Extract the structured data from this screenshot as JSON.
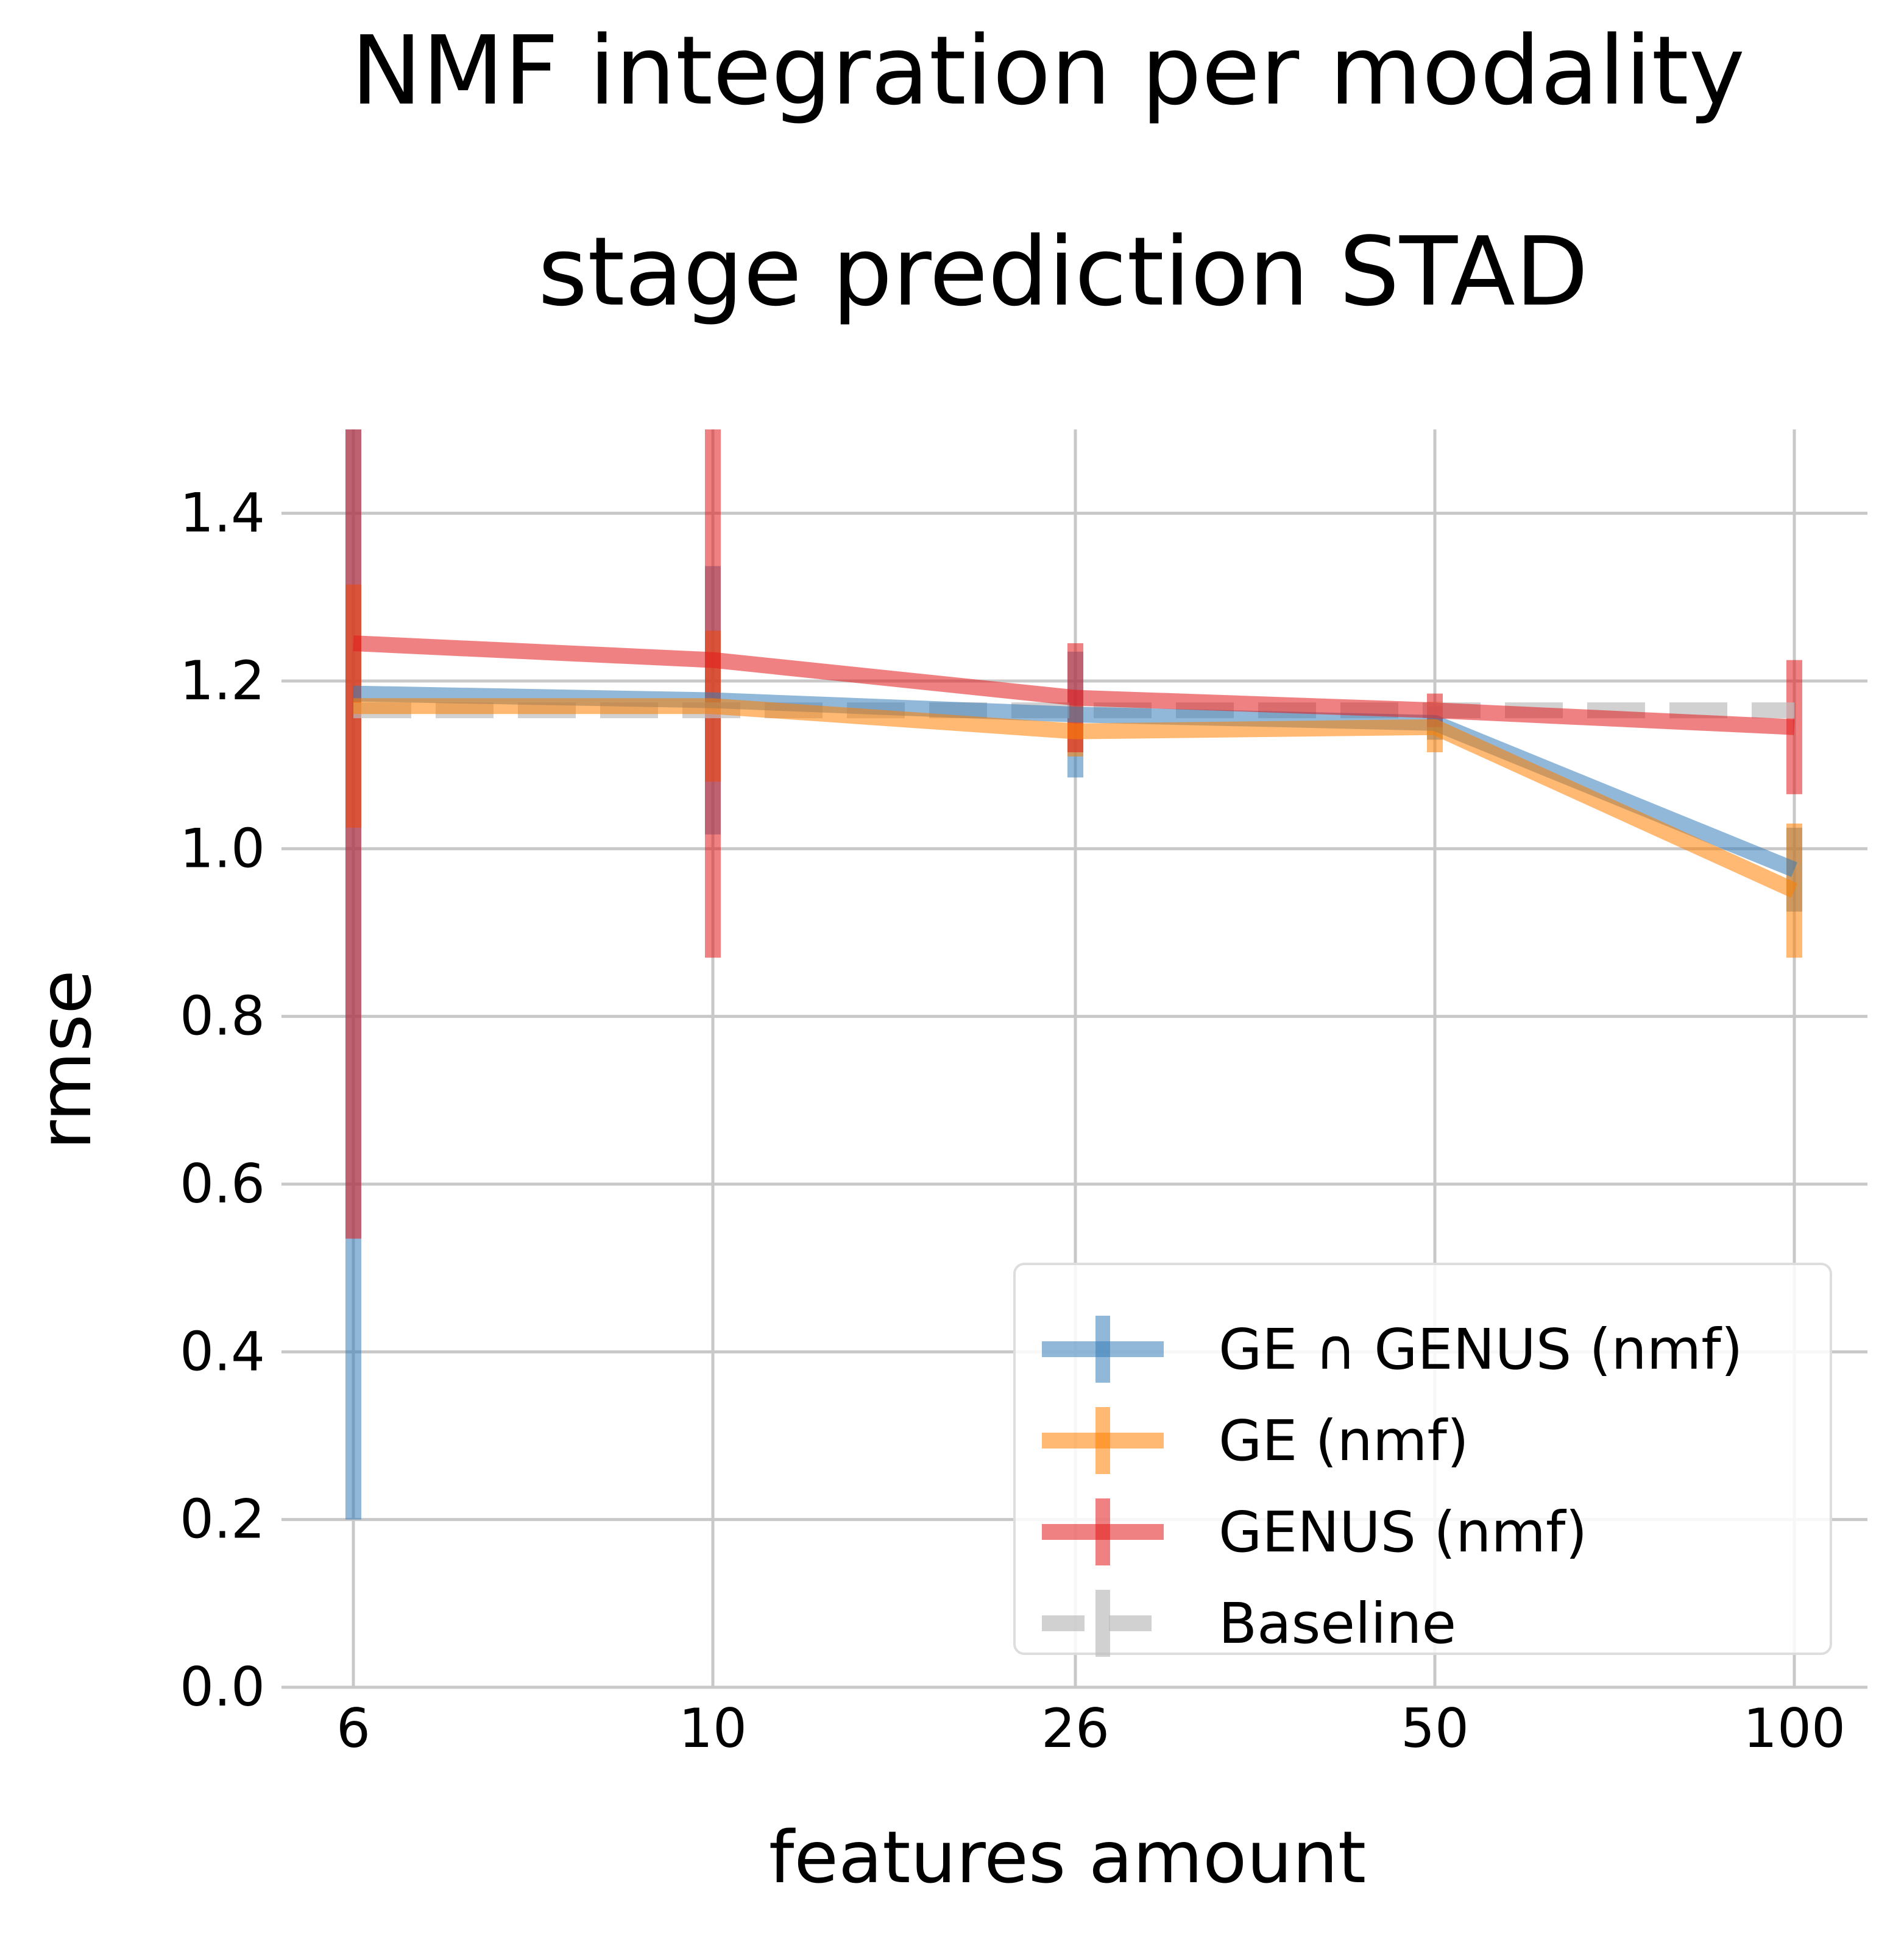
{
  "chart_data": {
    "type": "line",
    "title": "NMF integration per modality",
    "subtitle": "stage prediction STAD",
    "xlabel": "features amount",
    "ylabel": "rmse",
    "x": [
      "6",
      "10",
      "26",
      "50",
      "100"
    ],
    "ylim": [
      0.0,
      1.5
    ],
    "yticks": [
      "0.0",
      "0.2",
      "0.4",
      "0.6",
      "0.8",
      "1.0",
      "1.2",
      "1.4"
    ],
    "grid": true,
    "legend_position": "lower-right",
    "series": [
      {
        "name": "GE ∩ GENUS (nmf)",
        "color": "#377eb8",
        "style": "solid",
        "values": [
          1.185,
          1.177,
          1.16,
          1.15,
          0.975
        ],
        "error": [
          0.985,
          0.16,
          0.075,
          0.02,
          0.05
        ]
      },
      {
        "name": "GE (nmf)",
        "color": "#ff7f00",
        "style": "solid",
        "values": [
          1.17,
          1.17,
          1.14,
          1.145,
          0.95
        ],
        "error": [
          0.145,
          0.09,
          0.03,
          0.03,
          0.08
        ]
      },
      {
        "name": "GENUS (nmf)",
        "color": "#e41a1c",
        "style": "solid",
        "values": [
          1.245,
          1.225,
          1.18,
          1.165,
          1.145
        ],
        "error": [
          0.71,
          0.355,
          0.065,
          0.02,
          0.08
        ]
      },
      {
        "name": "Baseline",
        "color": "#bdbdbd",
        "style": "dashed",
        "values": [
          1.165,
          1.165,
          1.165,
          1.165,
          1.165
        ],
        "error": [
          0,
          0,
          0,
          0,
          0
        ]
      }
    ]
  }
}
